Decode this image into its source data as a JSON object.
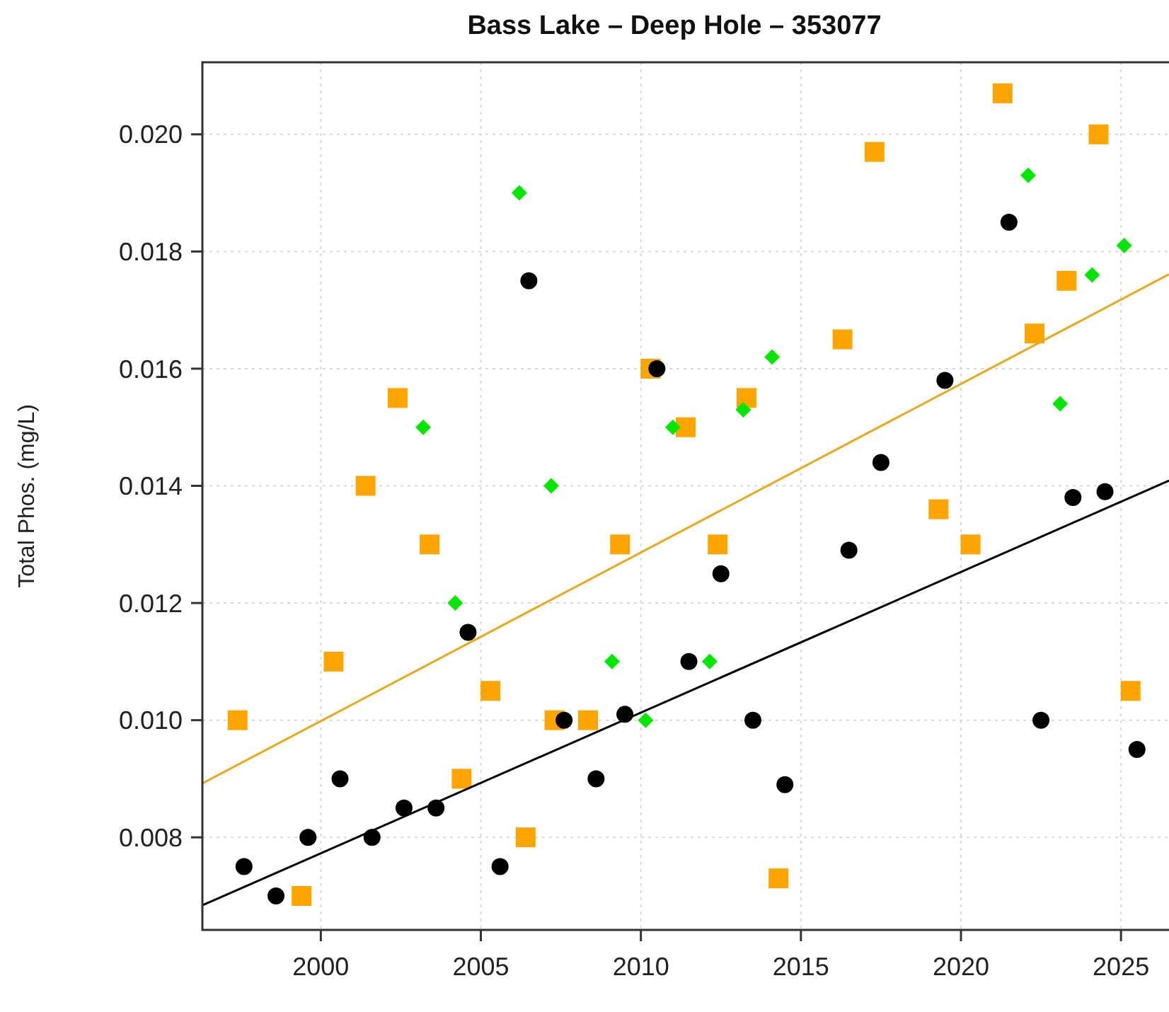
{
  "chart_data": {
    "type": "scatter",
    "title": "Bass Lake – Deep Hole – 353077",
    "ylabel": "Total Phos. (mg/L)",
    "xlim": [
      1996.3,
      2026.5
    ],
    "ylim": [
      0.00642,
      0.02123
    ],
    "xticks": [
      2000,
      2005,
      2010,
      2015,
      2020,
      2025
    ],
    "yticks": [
      {
        "value": 0.008,
        "label": "0.008"
      },
      {
        "value": 0.01,
        "label": "0.010"
      },
      {
        "value": 0.012,
        "label": "0.012"
      },
      {
        "value": 0.014,
        "label": "0.014"
      },
      {
        "value": 0.016,
        "label": "0.016"
      },
      {
        "value": 0.018,
        "label": "0.018"
      },
      {
        "value": 0.02,
        "label": "0.020"
      }
    ],
    "grid": true,
    "series": [
      {
        "marker": "square",
        "color": "#ffa500",
        "x": [
          1997.4,
          1999.4,
          2000.4,
          2001.4,
          2002.4,
          2003.4,
          2004.4,
          2005.3,
          2006.4,
          2007.3,
          2008.35,
          2009.35,
          2010.3,
          2011.4,
          2012.4,
          2013.3,
          2014.3,
          2016.3,
          2017.3,
          2019.3,
          2020.3,
          2021.3,
          2022.3,
          2023.3,
          2024.3,
          2025.3
        ],
        "values": [
          0.01,
          0.007,
          0.011,
          0.014,
          0.0155,
          0.013,
          0.009,
          0.0105,
          0.008,
          0.01,
          0.01,
          0.013,
          0.016,
          0.015,
          0.013,
          0.0155,
          0.0073,
          0.0165,
          0.0197,
          0.0136,
          0.013,
          0.0207,
          0.0166,
          0.0175,
          0.02,
          0.0105
        ]
      },
      {
        "marker": "diamond",
        "color": "#00e600",
        "x": [
          2003.2,
          2004.2,
          2006.2,
          2007.2,
          2009.1,
          2010.15,
          2011.0,
          2012.15,
          2013.2,
          2014.1,
          2022.1,
          2023.1,
          2024.1,
          2025.1
        ],
        "values": [
          0.015,
          0.012,
          0.019,
          0.014,
          0.011,
          0.01,
          0.015,
          0.011,
          0.0153,
          0.0162,
          0.0193,
          0.0154,
          0.0176,
          0.0181
        ]
      },
      {
        "marker": "circle",
        "color": "#000000",
        "x": [
          1997.6,
          1998.6,
          1999.6,
          2000.6,
          2001.6,
          2002.6,
          2003.6,
          2004.6,
          2005.6,
          2006.5,
          2007.6,
          2008.6,
          2009.5,
          2010.5,
          2011.5,
          2012.5,
          2013.5,
          2014.5,
          2016.5,
          2017.5,
          2019.5,
          2021.5,
          2022.5,
          2023.5,
          2024.5,
          2025.5
        ],
        "values": [
          0.0075,
          0.007,
          0.008,
          0.009,
          0.008,
          0.0085,
          0.0085,
          0.0115,
          0.0075,
          0.0175,
          0.01,
          0.009,
          0.0101,
          0.016,
          0.011,
          0.0125,
          0.01,
          0.0089,
          0.0129,
          0.0144,
          0.0158,
          0.0185,
          0.01,
          0.0138,
          0.0139,
          0.0095
        ]
      },
      {
        "type": "line",
        "marker": "none",
        "line_style": "solid",
        "color": "#e8a817",
        "x": [
          1996.3,
          2026.5
        ],
        "values": [
          0.00892,
          0.01761
        ]
      },
      {
        "type": "line",
        "marker": "none",
        "line_style": "solid",
        "color": "#000000",
        "x": [
          1996.3,
          2026.5
        ],
        "values": [
          0.00684,
          0.01409
        ]
      }
    ]
  }
}
